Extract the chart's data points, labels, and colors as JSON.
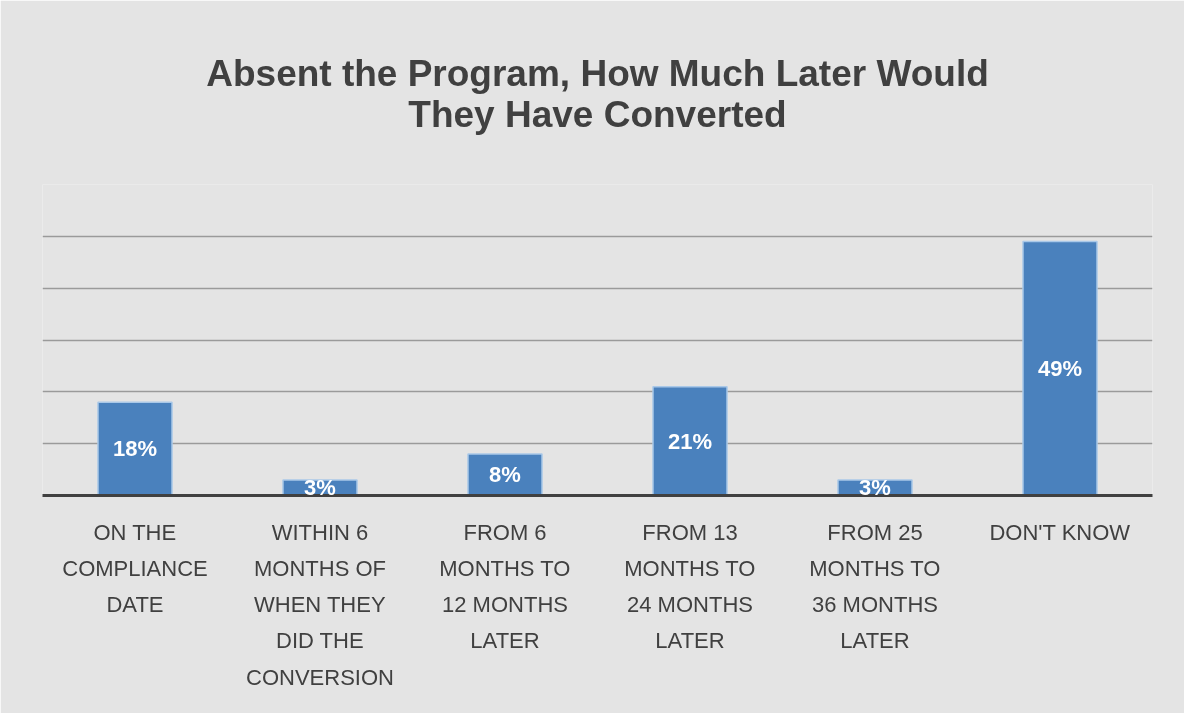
{
  "chart_data": {
    "type": "bar",
    "title": "Absent the Program, How Much Later Would They Have Converted",
    "categories": [
      "ON THE COMPLIANCE DATE",
      "WITHIN 6 MONTHS OF WHEN THEY DID THE CONVERSION",
      "FROM 6 MONTHS TO 12 MONTHS LATER",
      "FROM 13 MONTHS TO 24 MONTHS LATER",
      "FROM 25 MONTHS TO 36 MONTHS LATER",
      "DON'T KNOW"
    ],
    "values": [
      18,
      3,
      8,
      21,
      3,
      49
    ],
    "value_labels": [
      "18%",
      "3%",
      "8%",
      "21%",
      "3%",
      "49%"
    ],
    "color": "#4a81bd",
    "ylim": [
      0,
      60
    ],
    "yticks": [
      {
        "value": 0,
        "label": null
      },
      {
        "value": 10,
        "label": null
      },
      {
        "value": 20,
        "label": null
      },
      {
        "value": 30,
        "label": null
      },
      {
        "value": 40,
        "label": null
      },
      {
        "value": 50,
        "label": null
      },
      {
        "value": 60,
        "label": null
      }
    ],
    "grid": "y",
    "tick_labels": "x"
  }
}
